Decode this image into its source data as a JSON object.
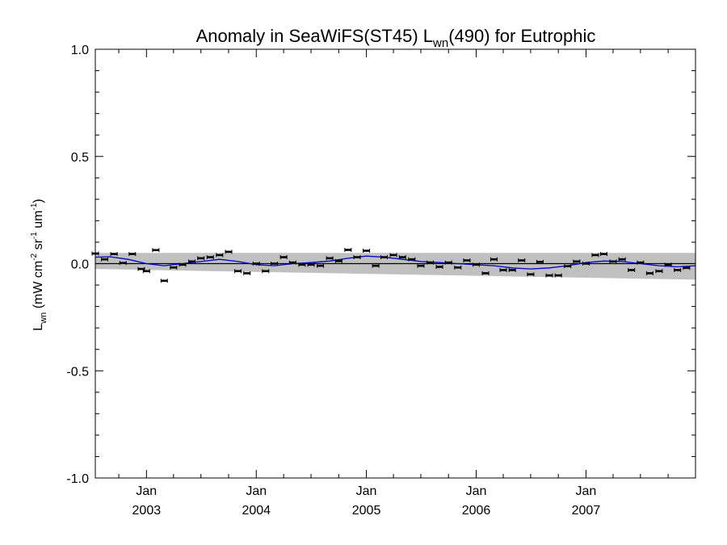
{
  "chart_data": {
    "type": "scatter",
    "title": {
      "prefix": "Anomaly in SeaWiFS(ST45) L",
      "subscript": "wn",
      "suffix": "(490) for Eutrophic"
    },
    "ylabel": {
      "symbol": "L",
      "symbol_sub": "wn",
      "units_open": " (mW cm",
      "exp1": "-2",
      "mid1": " sr",
      "exp2": "-1",
      "mid2": " um",
      "exp3": "-1",
      "units_close": ")"
    },
    "xlabel": "",
    "ylim": [
      -1.0,
      1.0
    ],
    "xlim": [
      "2002-07-15",
      "2007-12-31"
    ],
    "y_ticks": [
      {
        "value": 1.0,
        "label": "1.0"
      },
      {
        "value": 0.5,
        "label": "0.5"
      },
      {
        "value": 0.0,
        "label": "0.0"
      },
      {
        "value": -0.5,
        "label": "-0.5"
      },
      {
        "value": -1.0,
        "label": "-1.0"
      }
    ],
    "x_ticks": [
      {
        "date": "2003-01-01",
        "month": "Jan",
        "year": "2003"
      },
      {
        "date": "2004-01-01",
        "month": "Jan",
        "year": "2004"
      },
      {
        "date": "2005-01-01",
        "month": "Jan",
        "year": "2005"
      },
      {
        "date": "2006-01-01",
        "month": "Jan",
        "year": "2006"
      },
      {
        "date": "2007-01-01",
        "month": "Jan",
        "year": "2007"
      }
    ],
    "band": {
      "color": "#c0c0c0",
      "start": {
        "date": "2002-07-15",
        "upper": 0.05,
        "lower": -0.025
      },
      "end": {
        "date": "2007-12-31",
        "upper": 0.05,
        "lower": -0.075
      }
    },
    "zero_line": 0.0,
    "series": [
      {
        "style": "points_with_errorbars",
        "color": "#000000",
        "points": [
          {
            "x": "2002-07-15",
            "y": 0.047
          },
          {
            "x": "2002-08-15",
            "y": 0.02
          },
          {
            "x": "2002-09-15",
            "y": 0.045
          },
          {
            "x": "2002-10-15",
            "y": 0.003
          },
          {
            "x": "2002-11-15",
            "y": 0.045
          },
          {
            "x": "2002-12-15",
            "y": -0.025
          },
          {
            "x": "2003-01-01",
            "y": -0.035
          },
          {
            "x": "2003-02-01",
            "y": 0.063
          },
          {
            "x": "2003-03-01",
            "y": -0.08
          },
          {
            "x": "2003-04-01",
            "y": -0.018
          },
          {
            "x": "2003-05-01",
            "y": -0.005
          },
          {
            "x": "2003-06-01",
            "y": 0.01
          },
          {
            "x": "2003-07-01",
            "y": 0.025
          },
          {
            "x": "2003-08-01",
            "y": 0.03
          },
          {
            "x": "2003-09-01",
            "y": 0.04
          },
          {
            "x": "2003-10-01",
            "y": 0.055
          },
          {
            "x": "2003-11-01",
            "y": -0.035
          },
          {
            "x": "2003-12-01",
            "y": -0.045
          },
          {
            "x": "2004-01-01",
            "y": 0.0
          },
          {
            "x": "2004-02-01",
            "y": -0.035
          },
          {
            "x": "2004-03-01",
            "y": 0.0
          },
          {
            "x": "2004-04-01",
            "y": 0.03
          },
          {
            "x": "2004-05-01",
            "y": 0.005
          },
          {
            "x": "2004-06-01",
            "y": -0.005
          },
          {
            "x": "2004-07-01",
            "y": -0.005
          },
          {
            "x": "2004-08-01",
            "y": -0.01
          },
          {
            "x": "2004-09-01",
            "y": 0.025
          },
          {
            "x": "2004-10-01",
            "y": 0.012
          },
          {
            "x": "2004-11-01",
            "y": 0.064
          },
          {
            "x": "2004-12-01",
            "y": 0.03
          },
          {
            "x": "2005-01-01",
            "y": 0.06
          },
          {
            "x": "2005-02-01",
            "y": -0.01
          },
          {
            "x": "2005-03-01",
            "y": 0.03
          },
          {
            "x": "2005-04-01",
            "y": 0.04
          },
          {
            "x": "2005-05-01",
            "y": 0.03
          },
          {
            "x": "2005-06-01",
            "y": 0.02
          },
          {
            "x": "2005-07-01",
            "y": -0.01
          },
          {
            "x": "2005-08-01",
            "y": 0.005
          },
          {
            "x": "2005-09-01",
            "y": -0.015
          },
          {
            "x": "2005-10-01",
            "y": 0.005
          },
          {
            "x": "2005-11-01",
            "y": -0.018
          },
          {
            "x": "2005-12-01",
            "y": 0.015
          },
          {
            "x": "2006-01-01",
            "y": -0.005
          },
          {
            "x": "2006-02-01",
            "y": -0.045
          },
          {
            "x": "2006-03-01",
            "y": 0.02
          },
          {
            "x": "2006-04-01",
            "y": -0.03
          },
          {
            "x": "2006-05-01",
            "y": -0.03
          },
          {
            "x": "2006-06-01",
            "y": 0.015
          },
          {
            "x": "2006-07-01",
            "y": -0.05
          },
          {
            "x": "2006-08-01",
            "y": 0.008
          },
          {
            "x": "2006-09-01",
            "y": -0.055
          },
          {
            "x": "2006-10-01",
            "y": -0.055
          },
          {
            "x": "2006-11-01",
            "y": -0.012
          },
          {
            "x": "2006-12-01",
            "y": 0.01
          },
          {
            "x": "2007-01-01",
            "y": 0.0
          },
          {
            "x": "2007-02-01",
            "y": 0.04
          },
          {
            "x": "2007-03-01",
            "y": 0.045
          },
          {
            "x": "2007-04-01",
            "y": 0.01
          },
          {
            "x": "2007-05-01",
            "y": 0.02
          },
          {
            "x": "2007-06-01",
            "y": -0.03
          },
          {
            "x": "2007-07-01",
            "y": 0.005
          },
          {
            "x": "2007-08-01",
            "y": -0.045
          },
          {
            "x": "2007-09-01",
            "y": -0.035
          },
          {
            "x": "2007-10-01",
            "y": -0.005
          },
          {
            "x": "2007-11-01",
            "y": -0.03
          },
          {
            "x": "2007-12-01",
            "y": -0.02
          }
        ]
      },
      {
        "style": "line",
        "color": "#0000cc",
        "points": [
          {
            "x": "2002-07-15",
            "y": 0.03
          },
          {
            "x": "2002-09-01",
            "y": 0.032
          },
          {
            "x": "2002-11-01",
            "y": 0.02
          },
          {
            "x": "2003-01-01",
            "y": 0.0
          },
          {
            "x": "2003-03-01",
            "y": -0.01
          },
          {
            "x": "2003-05-01",
            "y": 0.0
          },
          {
            "x": "2003-07-01",
            "y": 0.01
          },
          {
            "x": "2003-09-01",
            "y": 0.02
          },
          {
            "x": "2003-11-01",
            "y": 0.01
          },
          {
            "x": "2004-01-01",
            "y": -0.005
          },
          {
            "x": "2004-03-01",
            "y": -0.01
          },
          {
            "x": "2004-05-01",
            "y": 0.0
          },
          {
            "x": "2004-07-01",
            "y": 0.005
          },
          {
            "x": "2004-09-01",
            "y": 0.012
          },
          {
            "x": "2004-11-01",
            "y": 0.025
          },
          {
            "x": "2005-01-01",
            "y": 0.035
          },
          {
            "x": "2005-03-01",
            "y": 0.03
          },
          {
            "x": "2005-05-01",
            "y": 0.02
          },
          {
            "x": "2005-07-01",
            "y": 0.01
          },
          {
            "x": "2005-09-01",
            "y": 0.005
          },
          {
            "x": "2005-11-01",
            "y": 0.0
          },
          {
            "x": "2006-01-01",
            "y": -0.005
          },
          {
            "x": "2006-03-01",
            "y": -0.01
          },
          {
            "x": "2006-05-01",
            "y": -0.02
          },
          {
            "x": "2006-07-01",
            "y": -0.025
          },
          {
            "x": "2006-09-01",
            "y": -0.02
          },
          {
            "x": "2006-11-01",
            "y": -0.01
          },
          {
            "x": "2007-01-01",
            "y": 0.005
          },
          {
            "x": "2007-03-01",
            "y": 0.012
          },
          {
            "x": "2007-05-01",
            "y": 0.01
          },
          {
            "x": "2007-07-01",
            "y": 0.0
          },
          {
            "x": "2007-09-01",
            "y": -0.01
          },
          {
            "x": "2007-11-01",
            "y": -0.015
          },
          {
            "x": "2007-12-31",
            "y": -0.01
          }
        ]
      }
    ]
  }
}
